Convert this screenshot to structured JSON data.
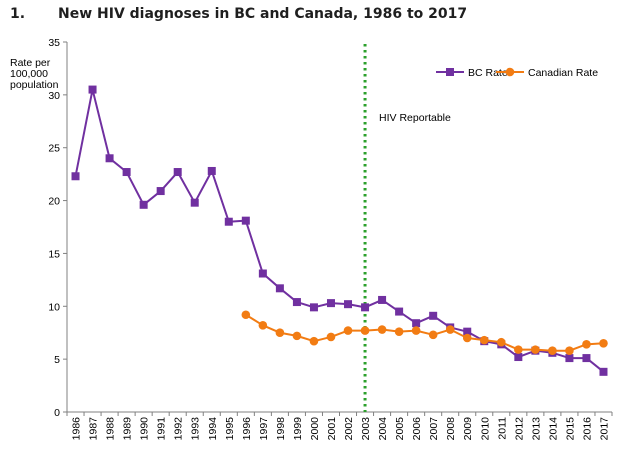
{
  "heading": {
    "number": "1.",
    "title": "New HIV diagnoses in BC and Canada, 1986 to 2017"
  },
  "chart_data": {
    "type": "line",
    "title": "New HIV diagnoses in BC and Canada, 1986 to 2017",
    "ylabel_lines": [
      "Rate per",
      "100,000",
      "population"
    ],
    "xlabel": "",
    "ylim": [
      0,
      35
    ],
    "yticks": [
      0,
      5,
      10,
      15,
      20,
      25,
      30,
      35
    ],
    "grid": false,
    "legend_position": "top-right",
    "categories": [
      "1986",
      "1987",
      "1988",
      "1989",
      "1990",
      "1991",
      "1992",
      "1993",
      "1994",
      "1995",
      "1996",
      "1997",
      "1998",
      "1999",
      "2000",
      "2001",
      "2002",
      "2003",
      "2004",
      "2005",
      "2006",
      "2007",
      "2008",
      "2009",
      "2010",
      "2011",
      "2012",
      "2013",
      "2014",
      "2015",
      "2016",
      "2017"
    ],
    "series": [
      {
        "name": "BC Rate",
        "color": "#7030A0",
        "marker": "square",
        "values": [
          22.3,
          30.5,
          24.0,
          22.7,
          19.6,
          20.9,
          22.7,
          19.8,
          22.8,
          18.0,
          18.1,
          13.1,
          11.7,
          10.4,
          9.9,
          10.3,
          10.2,
          9.9,
          10.6,
          9.5,
          8.4,
          9.1,
          8.0,
          7.6,
          6.7,
          6.4,
          5.2,
          5.8,
          5.6,
          5.1,
          5.1,
          3.8
        ]
      },
      {
        "name": "Canadian Rate",
        "color": "#F27C13",
        "marker": "circle",
        "values": [
          null,
          null,
          null,
          null,
          null,
          null,
          null,
          null,
          null,
          null,
          9.2,
          8.2,
          7.5,
          7.2,
          6.7,
          7.1,
          7.7,
          7.7,
          7.8,
          7.6,
          7.7,
          7.3,
          7.8,
          7.0,
          6.8,
          6.6,
          5.9,
          5.9,
          5.8,
          5.8,
          6.4,
          6.5
        ]
      }
    ],
    "annotations": [
      {
        "text": "HIV Reportable",
        "at_category": "2003",
        "line_style": "dotted",
        "color": "#2CA02C"
      }
    ]
  }
}
